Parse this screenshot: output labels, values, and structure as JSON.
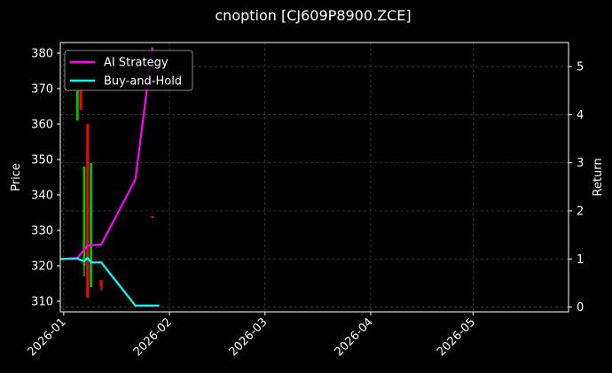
{
  "chart_data": {
    "type": "line",
    "title": "cnoption [CJ609P8900.ZCE]",
    "ylabel": "Price",
    "ylabel_right": "Return",
    "x_range": [
      "2025-12-31",
      "2026-05-29"
    ],
    "ylim": [
      307,
      383
    ],
    "ylim_right": [
      -0.1,
      5.5
    ],
    "x_ticks": [
      {
        "date": "2026-01-01",
        "label": "2026-01"
      },
      {
        "date": "2026-02-01",
        "label": "2026-02"
      },
      {
        "date": "2026-03-01",
        "label": "2026-03"
      },
      {
        "date": "2026-04-01",
        "label": "2026-04"
      },
      {
        "date": "2026-05-01",
        "label": "2026-05"
      }
    ],
    "y_ticks": [
      310,
      320,
      330,
      340,
      350,
      360,
      370,
      380
    ],
    "y_ticks_right": [
      0,
      1,
      2,
      3,
      4,
      5
    ],
    "grid": true,
    "legend_position": "top-left",
    "colors": {
      "background": "#000000",
      "up": "#00c000",
      "down": "#ff0000",
      "grid": "#444444"
    },
    "candles": [
      {
        "date": "2026-01-05",
        "high": 371,
        "low": 361,
        "open": 361,
        "close": 370,
        "dir": "up"
      },
      {
        "date": "2026-01-06",
        "high": 370,
        "low": 364,
        "open": 370,
        "close": 364,
        "dir": "down"
      },
      {
        "date": "2026-01-07",
        "high": 348,
        "low": 317,
        "open": 320,
        "close": 348,
        "dir": "up"
      },
      {
        "date": "2026-01-08",
        "high": 360,
        "low": 311,
        "open": 360,
        "close": 311,
        "dir": "down"
      },
      {
        "date": "2026-01-09",
        "high": 349,
        "low": 314,
        "open": 314,
        "close": 349,
        "dir": "up"
      },
      {
        "date": "2026-01-12",
        "high": 316,
        "low": 313,
        "open": 316,
        "close": 314,
        "dir": "down"
      },
      {
        "date": "2026-01-27",
        "high": 334,
        "low": 333.5,
        "open": 334,
        "close": 333.5,
        "dir": "down"
      }
    ],
    "series": [
      {
        "name": "AI Strategy",
        "color": "#ff00ff",
        "axis": "right",
        "points": [
          [
            "2025-12-31",
            1.0
          ],
          [
            "2026-01-05",
            1.02
          ],
          [
            "2026-01-08",
            1.28
          ],
          [
            "2026-01-12",
            1.3
          ],
          [
            "2026-01-22",
            2.65
          ],
          [
            "2026-01-27",
            5.4
          ]
        ]
      },
      {
        "name": "Buy-and-Hold",
        "color": "#00ffff",
        "axis": "right",
        "points": [
          [
            "2025-12-31",
            1.0
          ],
          [
            "2026-01-05",
            1.01
          ],
          [
            "2026-01-07",
            0.95
          ],
          [
            "2026-01-08",
            1.02
          ],
          [
            "2026-01-09",
            0.93
          ],
          [
            "2026-01-12",
            0.93
          ],
          [
            "2026-01-22",
            0.03
          ],
          [
            "2026-01-29",
            0.03
          ]
        ]
      }
    ]
  }
}
